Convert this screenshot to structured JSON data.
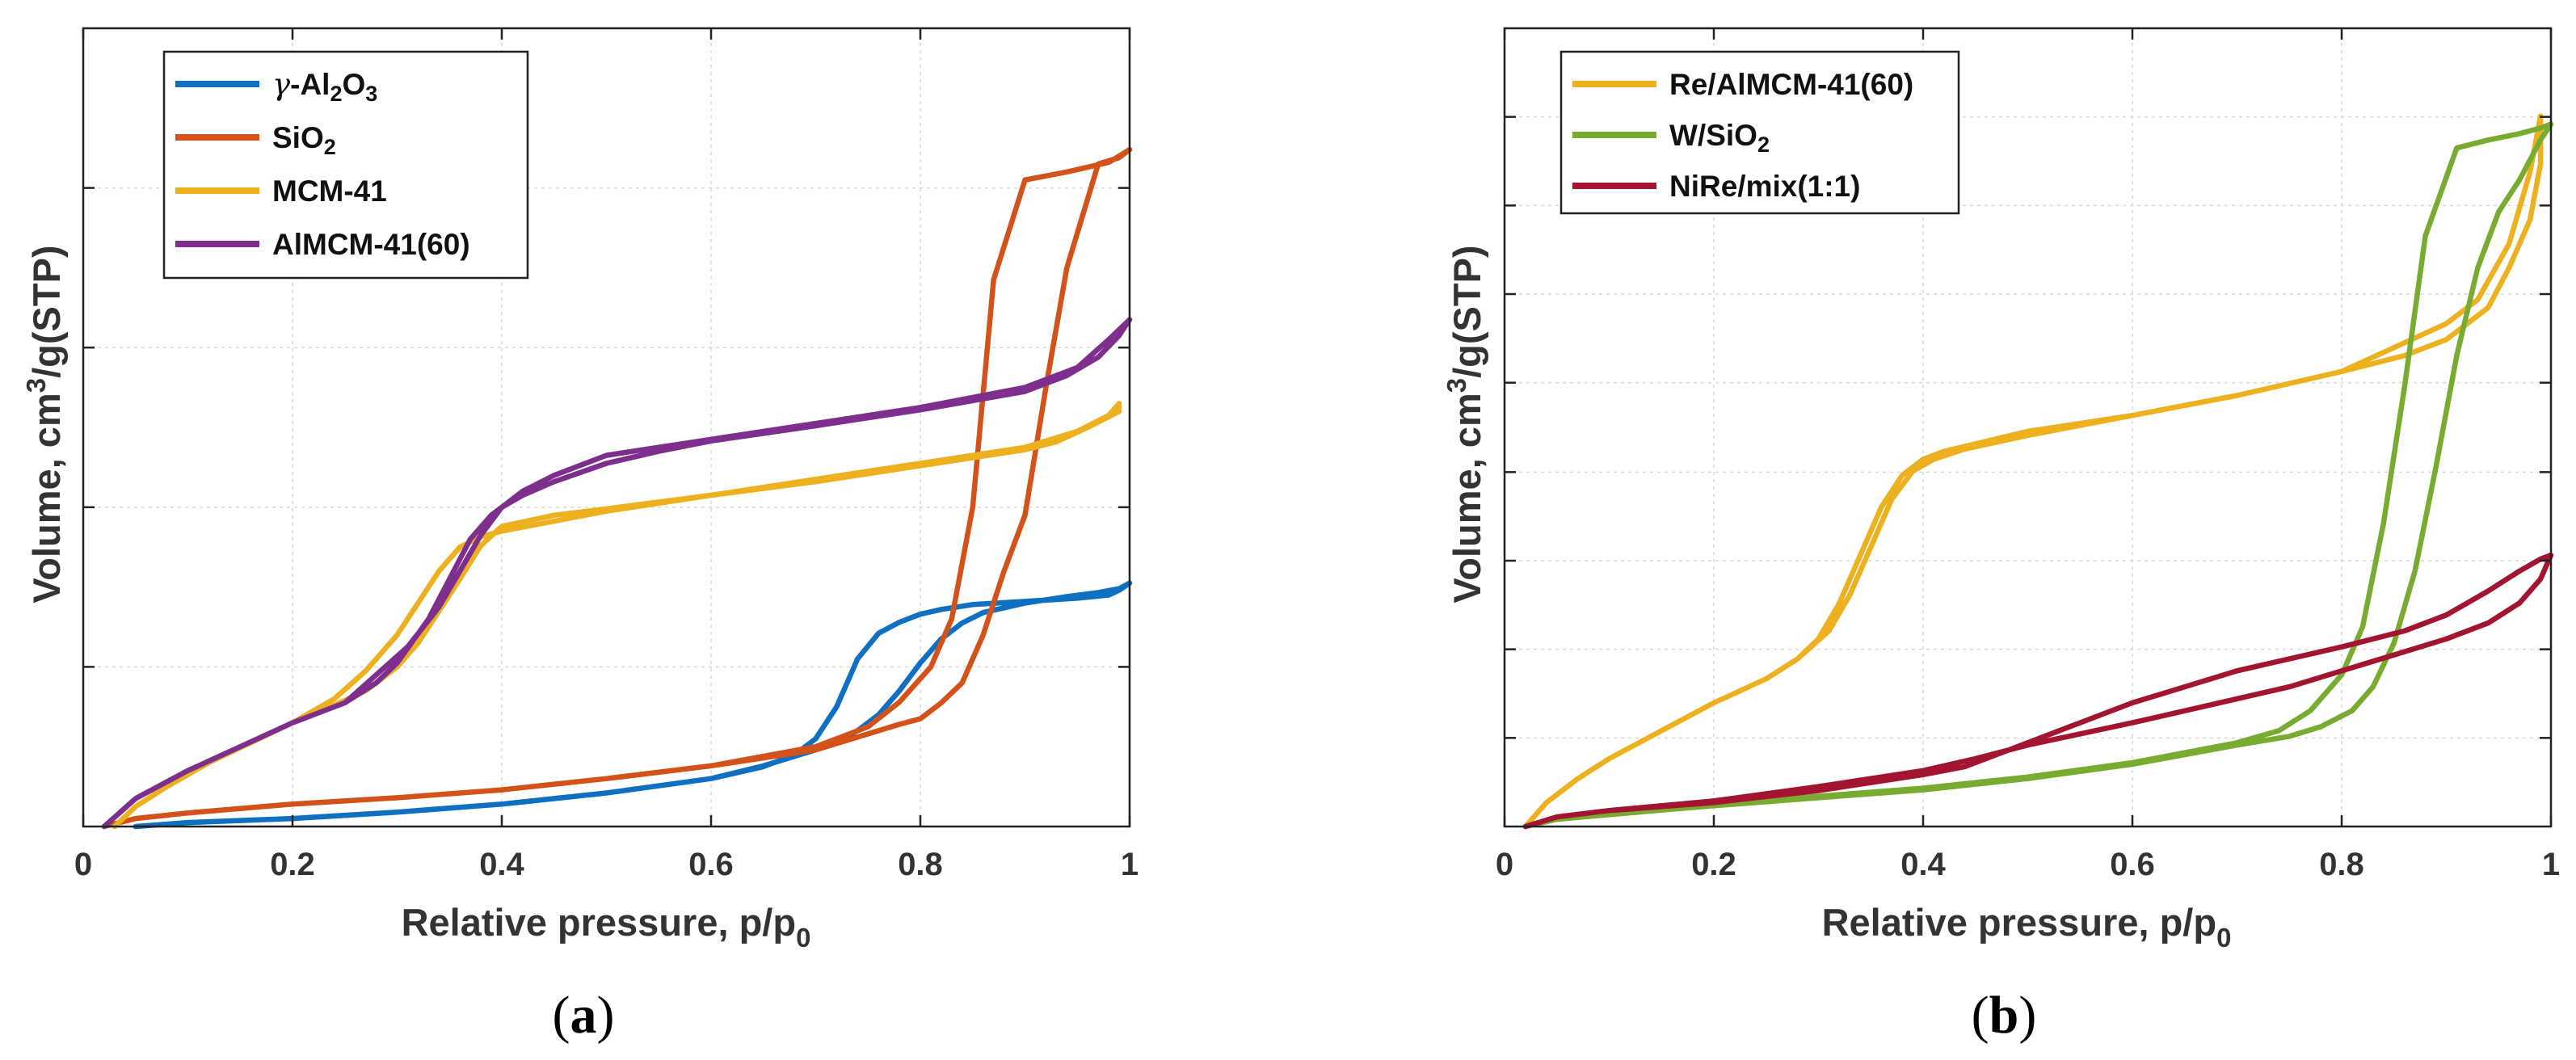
{
  "chart_data": [
    {
      "type": "line",
      "panel": "a",
      "panel_label": "a",
      "xlabel": "Relative pressure, p/p",
      "xlabel_sub": "0",
      "ylabel": "Volume, cm",
      "ylabel_sup": "3",
      "ylabel_rest": "/g(STP)",
      "xlim": [
        0,
        1
      ],
      "ylim": [
        0,
        100
      ],
      "xticks": [
        0,
        0.2,
        0.4,
        0.6,
        0.8,
        1
      ],
      "xtick_labels": [
        "0",
        "0.2",
        "0.4",
        "0.6",
        "0.8",
        "1"
      ],
      "yticks": [
        20,
        40,
        60,
        80
      ],
      "legend_position": "top-left",
      "grid": true,
      "series": [
        {
          "name": "γ-Al2O3",
          "label_parts": [
            [
              "γ",
              "normal"
            ],
            [
              "-Al",
              "normal"
            ],
            [
              "2",
              "sub"
            ],
            [
              "O",
              "normal"
            ],
            [
              "3",
              "sub"
            ]
          ],
          "color": "#0f6fc0",
          "x": [
            0.05,
            0.1,
            0.2,
            0.3,
            0.4,
            0.5,
            0.6,
            0.65,
            0.68,
            0.7,
            0.72,
            0.74,
            0.76,
            0.78,
            0.8,
            0.82,
            0.85,
            0.9,
            0.95,
            0.98,
            0.99,
            1.0,
            0.99,
            0.97,
            0.94,
            0.9,
            0.86,
            0.84,
            0.82,
            0.8,
            0.78,
            0.76,
            0.74,
            0.72,
            0.7,
            0.65,
            0.6,
            0.5,
            0.4,
            0.3,
            0.2,
            0.1,
            0.05
          ],
          "y": [
            0,
            0.5,
            1.0,
            1.8,
            2.8,
            4.2,
            6.0,
            7.5,
            9.0,
            11.0,
            15.0,
            21.0,
            24.2,
            25.6,
            26.6,
            27.2,
            27.8,
            28.2,
            28.6,
            29.0,
            29.6,
            30.5,
            29.8,
            29.3,
            28.8,
            28.0,
            26.8,
            25.5,
            23.5,
            20.5,
            17.0,
            14.0,
            12.0,
            10.6,
            9.6,
            7.6,
            6.0,
            4.2,
            2.8,
            1.8,
            1.0,
            0.5,
            0.0
          ]
        },
        {
          "name": "SiO2",
          "label_parts": [
            [
              "SiO",
              "normal"
            ],
            [
              "2",
              "sub"
            ]
          ],
          "color": "#d35219",
          "x": [
            0.02,
            0.05,
            0.1,
            0.2,
            0.3,
            0.4,
            0.5,
            0.6,
            0.7,
            0.75,
            0.78,
            0.81,
            0.83,
            0.85,
            0.87,
            0.9,
            0.92,
            0.94,
            0.96,
            0.98,
            0.99,
            1.0,
            0.99,
            0.97,
            0.94,
            0.92,
            0.9,
            0.88,
            0.86,
            0.84,
            0.82,
            0.8,
            0.78,
            0.76,
            0.7,
            0.6,
            0.5,
            0.4,
            0.3,
            0.2,
            0.1,
            0.05,
            0.02
          ],
          "y": [
            0,
            1.0,
            1.7,
            2.8,
            3.6,
            4.6,
            6.0,
            7.6,
            10.0,
            12.5,
            15.6,
            20.0,
            26.0,
            40.0,
            68.5,
            81.0,
            81.5,
            82.0,
            82.6,
            83.2,
            84.0,
            84.8,
            83.8,
            83.0,
            70.0,
            55.0,
            39.0,
            32.0,
            24.0,
            18.0,
            15.5,
            13.5,
            12.8,
            12.0,
            9.6,
            7.6,
            6.0,
            4.6,
            3.6,
            2.8,
            1.7,
            1.0,
            0.0
          ]
        },
        {
          "name": "MCM-41",
          "label_parts": [
            [
              "MCM-41",
              "normal"
            ]
          ],
          "color": "#edb120",
          "x": [
            0.03,
            0.05,
            0.08,
            0.12,
            0.16,
            0.2,
            0.24,
            0.27,
            0.3,
            0.32,
            0.34,
            0.36,
            0.38,
            0.4,
            0.5,
            0.6,
            0.7,
            0.8,
            0.9,
            0.95,
            0.98,
            0.99,
            0.99,
            0.96,
            0.93,
            0.9,
            0.8,
            0.7,
            0.6,
            0.5,
            0.45,
            0.4,
            0.38,
            0.36,
            0.34,
            0.32,
            0.3,
            0.27,
            0.24,
            0.2,
            0.16,
            0.12,
            0.08,
            0.05,
            0.03
          ],
          "y": [
            0,
            2.5,
            5.0,
            8.0,
            10.5,
            13.0,
            16.0,
            19.5,
            24.0,
            28.0,
            32.0,
            35.0,
            36.3,
            37.0,
            39.5,
            41.5,
            43.5,
            45.5,
            47.5,
            49.5,
            51.5,
            53.0,
            52.0,
            50.0,
            48.2,
            47.2,
            45.2,
            43.2,
            41.5,
            39.8,
            39.0,
            37.6,
            35.2,
            31.0,
            27.0,
            23.0,
            20.0,
            17.0,
            15.2,
            13.0,
            10.5,
            8.0,
            5.0,
            2.5,
            0.0
          ]
        },
        {
          "name": "AlMCM-41(60)",
          "label_parts": [
            [
              " AlMCM-41(60)",
              "normal"
            ]
          ],
          "color": "#7e2f8e",
          "x": [
            0.02,
            0.05,
            0.1,
            0.15,
            0.2,
            0.25,
            0.28,
            0.3,
            0.33,
            0.35,
            0.37,
            0.39,
            0.42,
            0.45,
            0.5,
            0.6,
            0.7,
            0.8,
            0.9,
            0.95,
            0.98,
            1.0,
            0.99,
            0.97,
            0.94,
            0.9,
            0.8,
            0.7,
            0.6,
            0.55,
            0.5,
            0.45,
            0.42,
            0.4,
            0.38,
            0.36,
            0.34,
            0.31,
            0.28,
            0.25,
            0.2,
            0.15,
            0.1,
            0.05,
            0.02
          ],
          "y": [
            0,
            3.5,
            7.0,
            10.0,
            13.0,
            15.5,
            18.0,
            20.5,
            26.0,
            31.0,
            36.0,
            39.0,
            42.0,
            44.0,
            46.5,
            48.5,
            50.5,
            52.5,
            55.0,
            57.5,
            61.0,
            63.5,
            61.5,
            58.8,
            56.5,
            54.5,
            52.2,
            50.2,
            48.3,
            47.0,
            45.5,
            43.2,
            41.5,
            40.0,
            36.5,
            32.0,
            27.5,
            22.5,
            19.0,
            15.5,
            13.0,
            10.0,
            7.0,
            3.5,
            0.0
          ]
        }
      ]
    },
    {
      "type": "line",
      "panel": "b",
      "panel_label": "b",
      "xlabel": "Relative pressure, p/p",
      "xlabel_sub": "0",
      "ylabel": "Volume, cm",
      "ylabel_sup": "3",
      "ylabel_rest": "/g(STP)",
      "xlim": [
        0,
        1
      ],
      "ylim": [
        0,
        100
      ],
      "xticks": [
        0,
        0.2,
        0.4,
        0.6,
        0.8,
        1
      ],
      "xtick_labels": [
        "0",
        "0.2",
        "0.4",
        "0.6",
        "0.8",
        "1"
      ],
      "yticks": [
        11.1,
        22.2,
        33.3,
        44.4,
        55.6,
        66.7,
        77.8,
        88.9
      ],
      "legend_position": "top-left",
      "grid": true,
      "series": [
        {
          "name": "Re/AlMCM-41(60)",
          "label_parts": [
            [
              "Re/AlMCM-41(60)",
              "normal"
            ]
          ],
          "color": "#edb120",
          "x": [
            0.02,
            0.04,
            0.07,
            0.1,
            0.15,
            0.2,
            0.25,
            0.28,
            0.3,
            0.32,
            0.34,
            0.36,
            0.38,
            0.4,
            0.42,
            0.5,
            0.6,
            0.7,
            0.8,
            0.86,
            0.9,
            0.94,
            0.96,
            0.98,
            0.99,
            0.99,
            0.98,
            0.96,
            0.93,
            0.9,
            0.85,
            0.8,
            0.7,
            0.6,
            0.5,
            0.44,
            0.41,
            0.39,
            0.37,
            0.35,
            0.33,
            0.31,
            0.28,
            0.25,
            0.2,
            0.15,
            0.1,
            0.07,
            0.04,
            0.02
          ],
          "y": [
            0.0,
            3.0,
            6.0,
            8.5,
            12.0,
            15.5,
            18.5,
            21.0,
            23.5,
            28.0,
            34.0,
            40.0,
            44.0,
            46.0,
            47.0,
            49.5,
            51.5,
            54.0,
            57.0,
            59.0,
            61.0,
            65.0,
            70.0,
            76.0,
            83.0,
            89.0,
            82.0,
            73.0,
            66.0,
            63.0,
            60.0,
            57.0,
            54.0,
            51.5,
            49.0,
            47.3,
            46.0,
            44.5,
            41.0,
            35.0,
            29.0,
            24.5,
            21.0,
            18.5,
            15.5,
            12.0,
            8.5,
            6.0,
            3.0,
            0.0
          ]
        },
        {
          "name": "W/SiO2",
          "label_parts": [
            [
              "W/SiO",
              "normal"
            ],
            [
              "2",
              "sub"
            ]
          ],
          "color": "#77ac30",
          "x": [
            0.02,
            0.05,
            0.1,
            0.2,
            0.3,
            0.4,
            0.5,
            0.6,
            0.7,
            0.74,
            0.77,
            0.8,
            0.82,
            0.84,
            0.86,
            0.88,
            0.91,
            0.94,
            0.97,
            0.99,
            1.0,
            0.99,
            0.97,
            0.95,
            0.93,
            0.91,
            0.89,
            0.87,
            0.85,
            0.83,
            0.81,
            0.78,
            0.75,
            0.7,
            0.6,
            0.5,
            0.4,
            0.3,
            0.2,
            0.1,
            0.05,
            0.02
          ],
          "y": [
            0.0,
            1.0,
            1.8,
            2.8,
            3.8,
            4.8,
            6.2,
            8.0,
            10.5,
            12.0,
            14.5,
            19.0,
            25.0,
            38.0,
            55.0,
            74.0,
            85.0,
            86.0,
            86.8,
            87.5,
            88.0,
            86.0,
            81.0,
            77.0,
            70.0,
            59.0,
            45.0,
            32.0,
            23.0,
            17.5,
            14.5,
            12.5,
            11.3,
            10.2,
            7.8,
            6.0,
            4.6,
            3.6,
            2.6,
            1.5,
            0.9,
            0.0
          ]
        },
        {
          "name": "NiRe/mix(1:1)",
          "label_parts": [
            [
              "NiRe/mix(1:1)",
              "normal"
            ]
          ],
          "color": "#a2142f",
          "x": [
            0.02,
            0.05,
            0.1,
            0.2,
            0.3,
            0.4,
            0.44,
            0.5,
            0.6,
            0.7,
            0.8,
            0.86,
            0.9,
            0.94,
            0.97,
            0.99,
            1.0,
            0.99,
            0.97,
            0.94,
            0.9,
            0.85,
            0.8,
            0.75,
            0.7,
            0.6,
            0.5,
            0.45,
            0.4,
            0.3,
            0.2,
            0.1,
            0.05,
            0.02
          ],
          "y": [
            0.0,
            1.2,
            2.0,
            3.0,
            4.5,
            6.5,
            7.5,
            10.5,
            15.5,
            19.5,
            22.5,
            24.5,
            26.5,
            29.5,
            32.0,
            33.5,
            34.0,
            31.0,
            28.0,
            25.5,
            23.5,
            21.5,
            19.5,
            17.5,
            16.0,
            13.0,
            10.2,
            8.5,
            7.0,
            5.0,
            3.2,
            2.0,
            1.2,
            0.0
          ]
        }
      ]
    }
  ]
}
